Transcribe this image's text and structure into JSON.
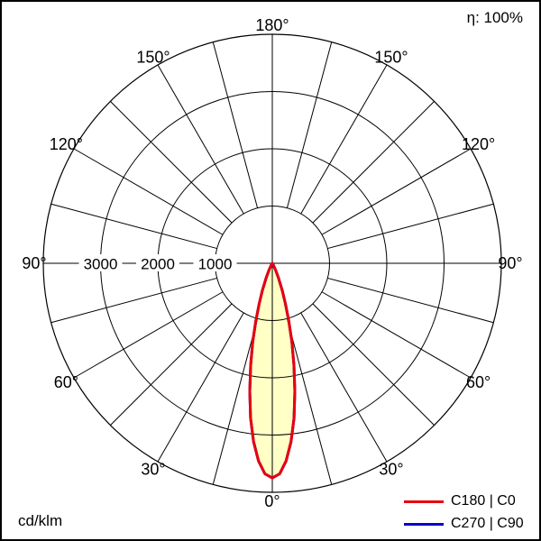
{
  "header": {
    "efficiency": "η: 100%"
  },
  "footer": {
    "unit": "cd/klm"
  },
  "legend": {
    "items": [
      {
        "label": "C180 | C0",
        "color": "#e8000d"
      },
      {
        "label": "C270 | C90",
        "color": "#0008c8"
      }
    ]
  },
  "chart_data": {
    "type": "polar",
    "description": "Luminous intensity distribution curve (polar photometric diagram, 0° at bottom)",
    "units": "cd/klm",
    "efficiency_percent": 100,
    "angle_step_deg": 15,
    "angle_labels_deg": [
      0,
      30,
      60,
      90,
      120,
      150,
      180
    ],
    "degree_suffix": "°",
    "ring_values": [
      1000,
      2000,
      3000
    ],
    "ring_max_value": 4000,
    "series": [
      {
        "name": "C180 | C0",
        "color": "#e8000d",
        "fill": "#ffffc6",
        "gamma_deg": [
          0,
          2,
          4,
          6,
          8,
          10,
          12,
          14,
          16,
          18,
          20,
          23,
          26,
          30,
          34,
          38,
          40,
          50,
          60,
          70,
          80,
          90
        ],
        "values_cd_per_klm": [
          3750,
          3680,
          3460,
          3130,
          2730,
          2270,
          1820,
          1410,
          1040,
          740,
          510,
          270,
          130,
          40,
          10,
          0,
          0,
          0,
          0,
          0,
          0,
          0
        ]
      },
      {
        "name": "C270 | C90",
        "color": "#0008c8",
        "fill": null,
        "gamma_deg": [
          0,
          2,
          4,
          6,
          8,
          10,
          12,
          14,
          16,
          18,
          20,
          23,
          26,
          30,
          34,
          38,
          40,
          50,
          60,
          70,
          80,
          90
        ],
        "values_cd_per_klm": [
          3750,
          3680,
          3460,
          3130,
          2730,
          2270,
          1820,
          1410,
          1040,
          740,
          510,
          270,
          130,
          40,
          10,
          0,
          0,
          0,
          0,
          0,
          0,
          0
        ]
      }
    ]
  }
}
